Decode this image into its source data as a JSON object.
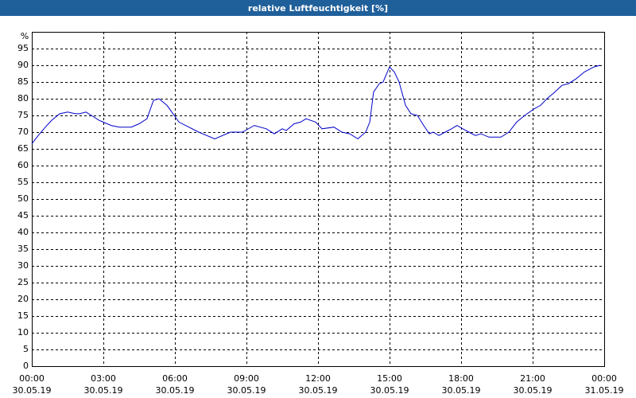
{
  "chart_data": {
    "type": "line",
    "title": "relative Luftfeuchtigkeit [%]",
    "y_label": "%",
    "x": [
      0,
      0.27,
      0.57,
      0.83,
      1.17,
      1.5,
      1.83,
      2,
      2.27,
      2.5,
      2.83,
      3.33,
      3.67,
      4.17,
      4.5,
      4.83,
      5.1,
      5.33,
      5.67,
      6.17,
      7,
      7.67,
      8.33,
      8.83,
      9.33,
      9.83,
      10.17,
      10.5,
      10.67,
      11,
      11.27,
      11.5,
      11.9,
      12.17,
      12.67,
      13,
      13.33,
      13.67,
      13.83,
      14,
      14.17,
      14.33,
      14.57,
      14.73,
      15,
      15.2,
      15.4,
      15.67,
      15.9,
      16.17,
      16.43,
      16.67,
      16.83,
      17.07,
      17.33,
      17.6,
      17.83,
      18.07,
      18.33,
      18.6,
      18.83,
      19.17,
      19.67,
      20,
      20.33,
      20.67,
      21.07,
      21.33,
      21.6,
      21.93,
      22.23,
      22.5,
      22.83,
      23.17,
      23.57,
      23.83
    ],
    "series": [
      {
        "name": "relative Luftfeuchtigkeit",
        "color": "#0000cc",
        "values": [
          66.5,
          69,
          71.5,
          73.5,
          75.5,
          76,
          75.5,
          75.5,
          76,
          75,
          73.5,
          72,
          71.5,
          71.5,
          72.5,
          74,
          79.5,
          80,
          78,
          73,
          70,
          68,
          70,
          70,
          72,
          71,
          69.5,
          71,
          70.5,
          72.5,
          73,
          74,
          73,
          71,
          71.5,
          70,
          69.5,
          68,
          69,
          70,
          73,
          82,
          84.5,
          85,
          89.5,
          88,
          85,
          78,
          75.5,
          75,
          72,
          69.5,
          70,
          69,
          70,
          71,
          72,
          71,
          70,
          69,
          69.5,
          68.5,
          68.5,
          70,
          73,
          75,
          77,
          78,
          80,
          82,
          84,
          84.5,
          86,
          88,
          89.5,
          90
        ]
      }
    ],
    "xlim": [
      0,
      24
    ],
    "xticks": [
      {
        "value": 0,
        "label": "00:00"
      },
      {
        "value": 3,
        "label": "03:00"
      },
      {
        "value": 6,
        "label": "06:00"
      },
      {
        "value": 9,
        "label": "09:00"
      },
      {
        "value": 12,
        "label": "12:00"
      },
      {
        "value": 15,
        "label": "15:00"
      },
      {
        "value": 18,
        "label": "18:00"
      },
      {
        "value": 21,
        "label": "21:00"
      },
      {
        "value": 24,
        "label": "00:00"
      }
    ],
    "xtick_dates": [
      "30.05.19",
      "30.05.19",
      "30.05.19",
      "30.05.19",
      "30.05.19",
      "30.05.19",
      "30.05.19",
      "30.05.19",
      "31.05.19"
    ],
    "ylim": [
      0,
      100
    ],
    "yticks": [
      0,
      5,
      10,
      15,
      20,
      25,
      30,
      35,
      40,
      45,
      50,
      55,
      60,
      65,
      70,
      75,
      80,
      85,
      90,
      95
    ],
    "grid": true
  }
}
